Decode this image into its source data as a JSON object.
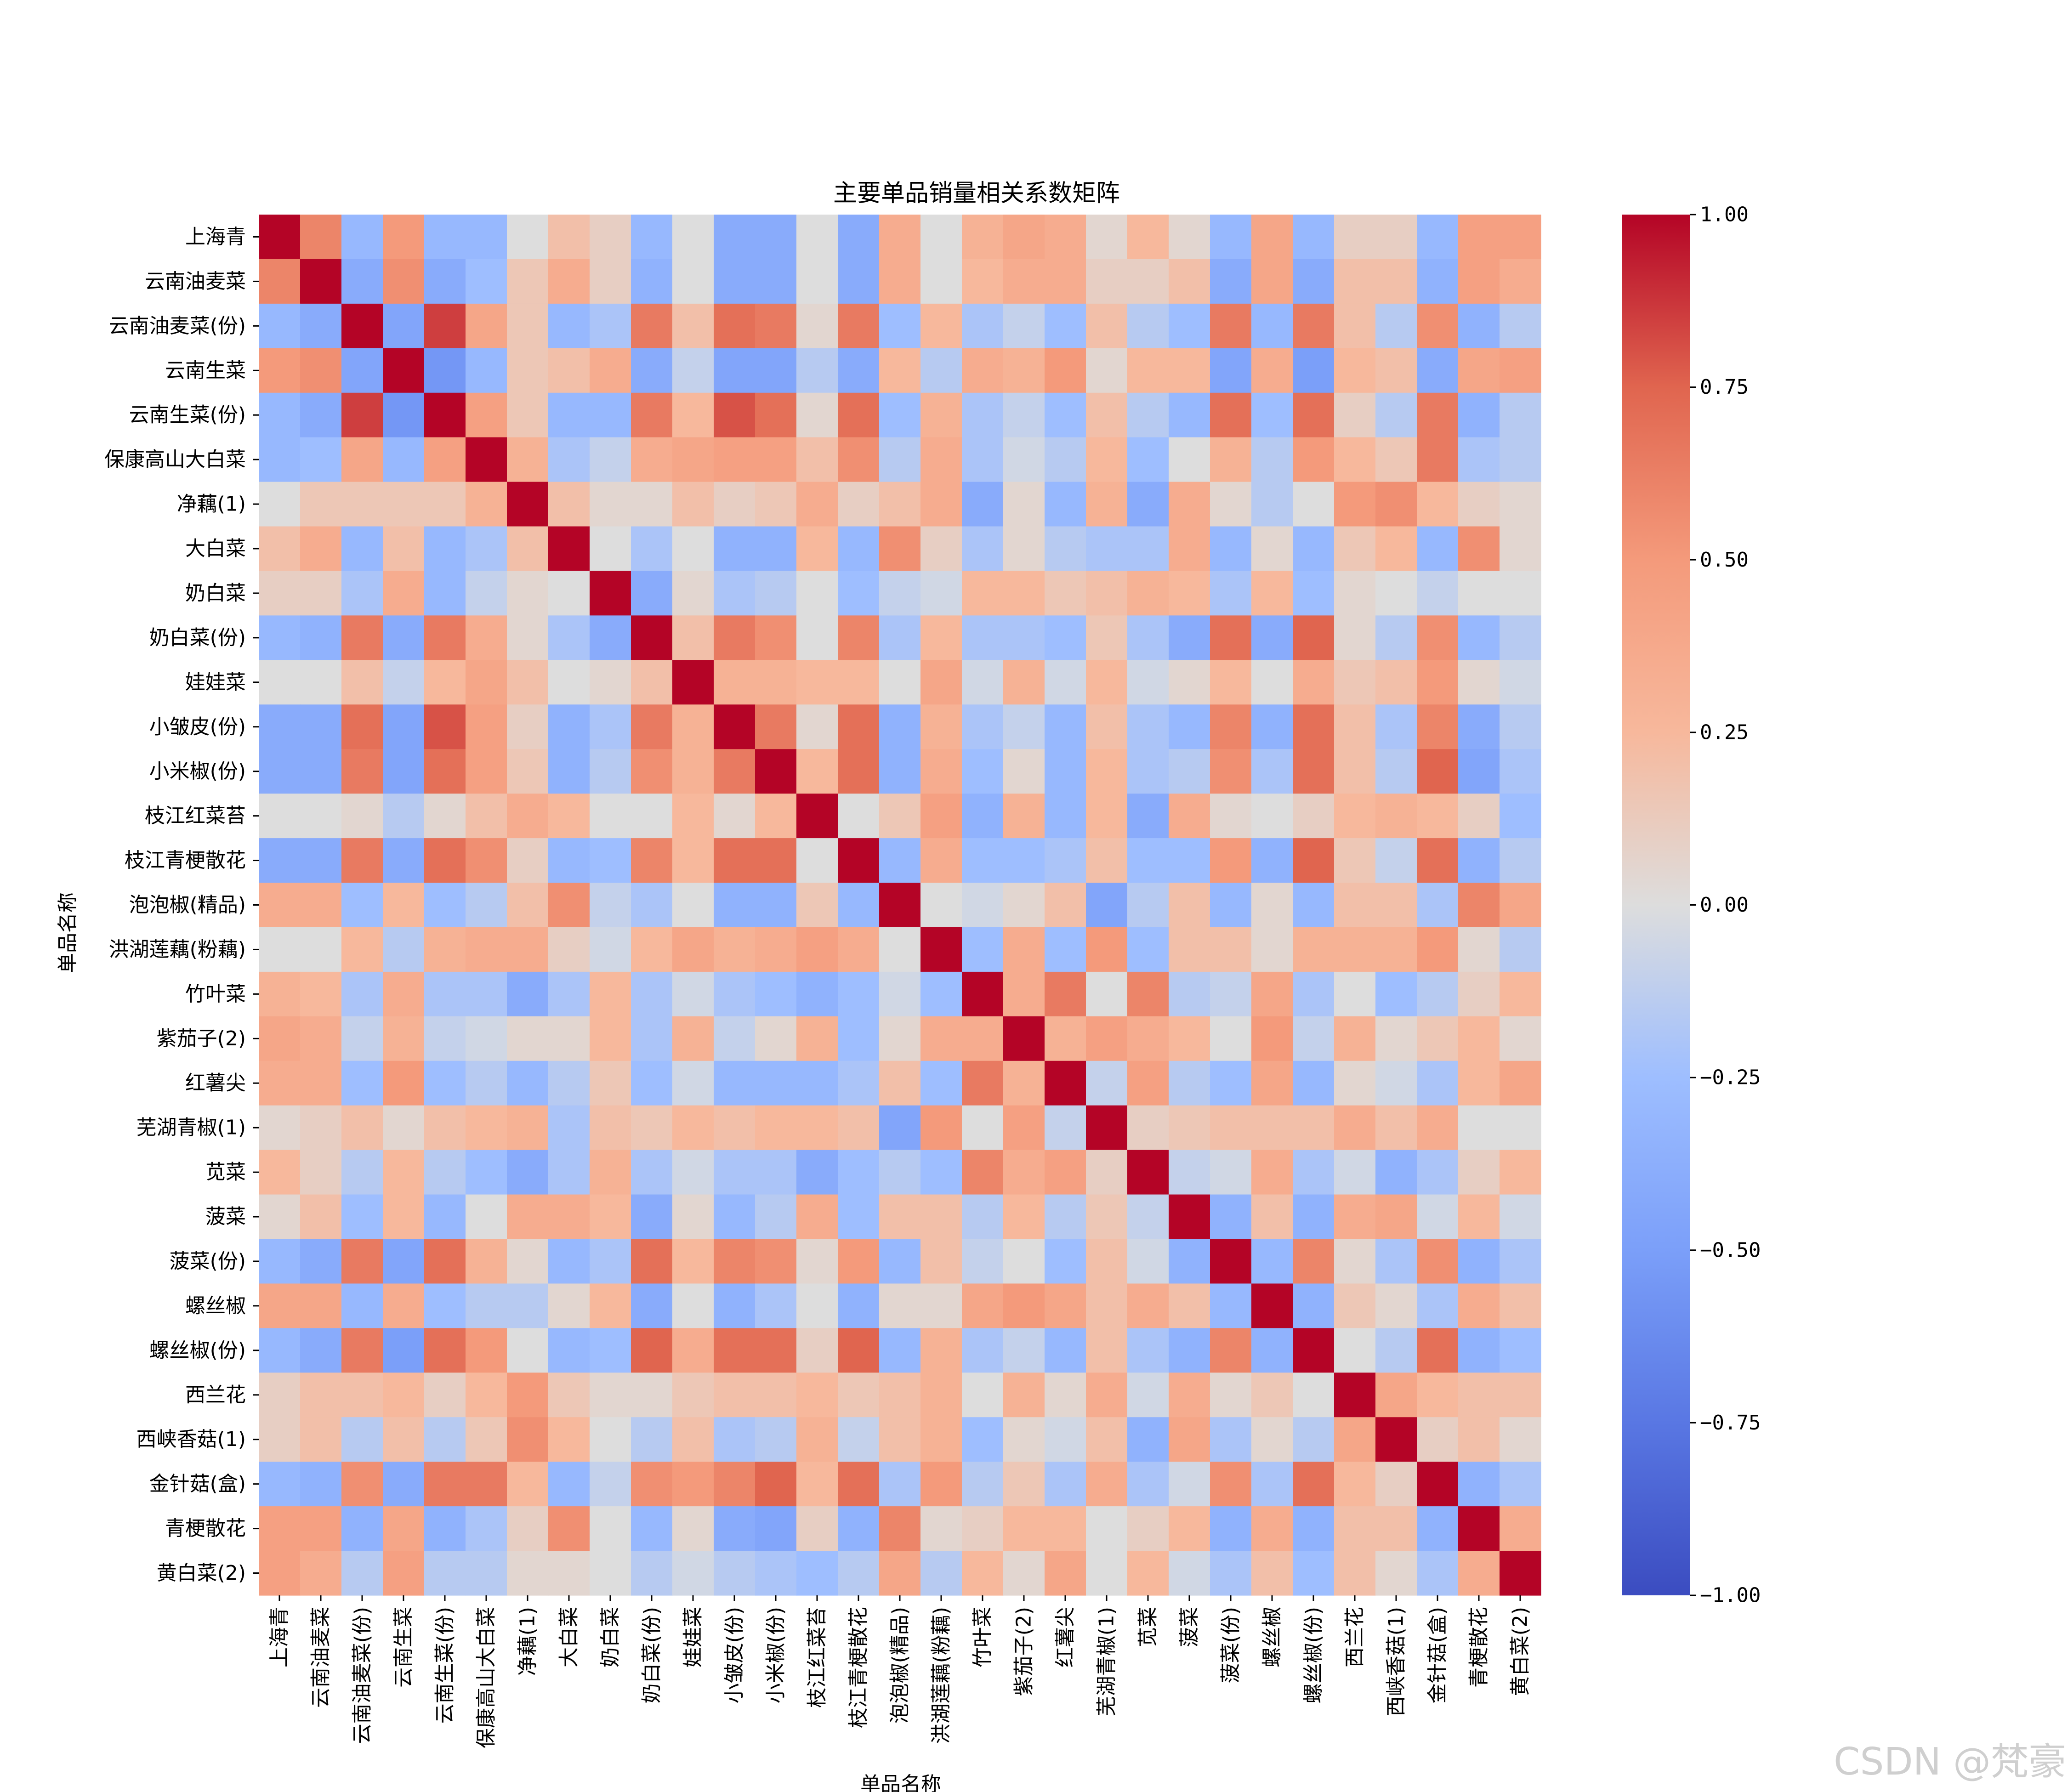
{
  "watermark": "CSDN @梵豪",
  "chart_data": {
    "type": "heatmap",
    "title": "主要单品销量相关系数矩阵",
    "xlabel": "单品名称",
    "ylabel": "单品名称",
    "colormap": "coolwarm",
    "colors": {
      "min": "#3b4cc0",
      "mid": "#dddddd",
      "max": "#b40426"
    },
    "vmin": -1.0,
    "vmax": 1.0,
    "colorbar_ticks": [
      1.0,
      0.75,
      0.5,
      0.25,
      0.0,
      -0.25,
      -0.5,
      -0.75,
      -1.0
    ],
    "colorbar_tick_labels": [
      "1.00",
      "0.75",
      "0.50",
      "0.25",
      "0.00",
      "−0.25",
      "−0.50",
      "−0.75",
      "−1.00"
    ],
    "labels": [
      "上海青",
      "云南油麦菜",
      "云南油麦菜(份)",
      "云南生菜",
      "云南生菜(份)",
      "保康高山大白菜",
      "净藕(1)",
      "大白菜",
      "奶白菜",
      "奶白菜(份)",
      "娃娃菜",
      "小皱皮(份)",
      "小米椒(份)",
      "枝江红菜苔",
      "枝江青梗散花",
      "泡泡椒(精品)",
      "洪湖莲藕(粉藕)",
      "竹叶菜",
      "紫茄子(2)",
      "红薯尖",
      "芜湖青椒(1)",
      "苋菜",
      "菠菜",
      "菠菜(份)",
      "螺丝椒",
      "螺丝椒(份)",
      "西兰花",
      "西峡香菇(1)",
      "金针菇(盒)",
      "青梗散花",
      "黄白菜(2)"
    ],
    "matrix": [
      [
        1.0,
        0.6,
        -0.3,
        0.5,
        -0.3,
        -0.3,
        0.0,
        0.2,
        0.1,
        -0.3,
        0.0,
        -0.4,
        -0.4,
        0.0,
        -0.4,
        0.35,
        0.0,
        0.3,
        0.4,
        0.35,
        0.05,
        0.25,
        0.05,
        -0.3,
        0.4,
        -0.3,
        0.1,
        0.1,
        -0.3,
        0.45,
        0.45
      ],
      [
        0.6,
        1.0,
        -0.4,
        0.55,
        -0.4,
        -0.25,
        0.15,
        0.35,
        0.1,
        -0.35,
        0.0,
        -0.4,
        -0.4,
        0.0,
        -0.4,
        0.35,
        0.0,
        0.25,
        0.35,
        0.35,
        0.1,
        0.1,
        0.2,
        -0.4,
        0.4,
        -0.4,
        0.2,
        0.2,
        -0.35,
        0.45,
        0.35
      ],
      [
        -0.3,
        -0.4,
        1.0,
        -0.45,
        0.85,
        0.4,
        0.15,
        -0.3,
        -0.2,
        0.65,
        0.2,
        0.7,
        0.65,
        0.05,
        0.65,
        -0.25,
        0.25,
        -0.2,
        -0.1,
        -0.25,
        0.2,
        -0.15,
        -0.25,
        0.65,
        -0.3,
        0.65,
        0.2,
        -0.15,
        0.55,
        -0.35,
        -0.15
      ],
      [
        0.5,
        0.55,
        -0.45,
        1.0,
        -0.55,
        -0.3,
        0.15,
        0.2,
        0.35,
        -0.4,
        -0.1,
        -0.45,
        -0.45,
        -0.15,
        -0.4,
        0.25,
        -0.15,
        0.35,
        0.3,
        0.5,
        0.05,
        0.25,
        0.25,
        -0.45,
        0.35,
        -0.5,
        0.25,
        0.2,
        -0.4,
        0.4,
        0.45
      ],
      [
        -0.3,
        -0.4,
        0.85,
        -0.55,
        1.0,
        0.45,
        0.15,
        -0.3,
        -0.3,
        0.65,
        0.25,
        0.8,
        0.7,
        0.05,
        0.7,
        -0.25,
        0.3,
        -0.2,
        -0.1,
        -0.25,
        0.2,
        -0.15,
        -0.3,
        0.7,
        -0.25,
        0.7,
        0.1,
        -0.15,
        0.65,
        -0.35,
        -0.15
      ],
      [
        -0.3,
        -0.25,
        0.4,
        -0.3,
        0.45,
        1.0,
        0.3,
        -0.2,
        -0.1,
        0.35,
        0.4,
        0.45,
        0.45,
        0.2,
        0.55,
        -0.15,
        0.35,
        -0.2,
        -0.05,
        -0.15,
        0.25,
        -0.25,
        0.0,
        0.3,
        -0.15,
        0.5,
        0.25,
        0.15,
        0.65,
        -0.2,
        -0.15
      ],
      [
        0.0,
        0.15,
        0.15,
        0.15,
        0.15,
        0.3,
        1.0,
        0.2,
        0.05,
        0.05,
        0.2,
        0.1,
        0.15,
        0.35,
        0.1,
        0.2,
        0.35,
        -0.4,
        0.05,
        -0.3,
        0.3,
        -0.4,
        0.35,
        0.05,
        -0.15,
        0.0,
        0.5,
        0.55,
        0.25,
        0.1,
        0.05
      ],
      [
        0.2,
        0.35,
        -0.3,
        0.2,
        -0.3,
        -0.2,
        0.2,
        1.0,
        0.0,
        -0.2,
        0.0,
        -0.35,
        -0.35,
        0.25,
        -0.3,
        0.55,
        0.1,
        -0.2,
        0.05,
        -0.15,
        -0.2,
        -0.2,
        0.35,
        -0.3,
        0.05,
        -0.3,
        0.15,
        0.25,
        -0.3,
        0.55,
        0.05
      ],
      [
        0.1,
        0.1,
        -0.2,
        0.35,
        -0.3,
        -0.1,
        0.05,
        0.0,
        1.0,
        -0.4,
        0.05,
        -0.2,
        -0.15,
        0.0,
        -0.25,
        -0.1,
        -0.05,
        0.25,
        0.25,
        0.15,
        0.2,
        0.3,
        0.25,
        -0.2,
        0.25,
        -0.25,
        0.05,
        0.0,
        -0.1,
        0.0,
        0.0
      ],
      [
        -0.3,
        -0.35,
        0.65,
        -0.4,
        0.65,
        0.35,
        0.05,
        -0.2,
        -0.4,
        1.0,
        0.2,
        0.65,
        0.55,
        0.0,
        0.6,
        -0.2,
        0.25,
        -0.2,
        -0.2,
        -0.25,
        0.15,
        -0.2,
        -0.4,
        0.7,
        -0.4,
        0.75,
        0.05,
        -0.15,
        0.55,
        -0.3,
        -0.15
      ],
      [
        0.0,
        0.0,
        0.2,
        -0.1,
        0.25,
        0.4,
        0.2,
        0.0,
        0.05,
        0.2,
        1.0,
        0.3,
        0.3,
        0.25,
        0.25,
        0.0,
        0.4,
        -0.05,
        0.3,
        -0.05,
        0.25,
        -0.05,
        0.05,
        0.25,
        0.0,
        0.35,
        0.15,
        0.2,
        0.5,
        0.05,
        -0.05
      ],
      [
        -0.4,
        -0.4,
        0.7,
        -0.45,
        0.8,
        0.45,
        0.1,
        -0.35,
        -0.2,
        0.65,
        0.3,
        1.0,
        0.65,
        0.05,
        0.7,
        -0.35,
        0.3,
        -0.2,
        -0.1,
        -0.3,
        0.2,
        -0.2,
        -0.3,
        0.6,
        -0.35,
        0.7,
        0.2,
        -0.2,
        0.6,
        -0.4,
        -0.15
      ],
      [
        -0.4,
        -0.4,
        0.65,
        -0.45,
        0.7,
        0.45,
        0.15,
        -0.35,
        -0.15,
        0.55,
        0.3,
        0.65,
        1.0,
        0.25,
        0.7,
        -0.35,
        0.35,
        -0.25,
        0.05,
        -0.3,
        0.25,
        -0.2,
        -0.15,
        0.55,
        -0.2,
        0.7,
        0.2,
        -0.15,
        0.75,
        -0.45,
        -0.2
      ],
      [
        0.0,
        0.0,
        0.05,
        -0.15,
        0.05,
        0.2,
        0.35,
        0.25,
        0.0,
        0.0,
        0.25,
        0.05,
        0.25,
        1.0,
        0.0,
        0.15,
        0.45,
        -0.35,
        0.3,
        -0.3,
        0.25,
        -0.4,
        0.35,
        0.05,
        0.0,
        0.1,
        0.25,
        0.3,
        0.25,
        0.1,
        -0.25
      ],
      [
        -0.4,
        -0.4,
        0.65,
        -0.4,
        0.7,
        0.55,
        0.1,
        -0.3,
        -0.25,
        0.6,
        0.25,
        0.7,
        0.7,
        0.0,
        1.0,
        -0.3,
        0.35,
        -0.25,
        -0.25,
        -0.2,
        0.2,
        -0.25,
        -0.25,
        0.5,
        -0.35,
        0.75,
        0.15,
        -0.1,
        0.7,
        -0.35,
        -0.15
      ],
      [
        0.35,
        0.35,
        -0.25,
        0.25,
        -0.25,
        -0.15,
        0.2,
        0.55,
        -0.1,
        -0.2,
        0.0,
        -0.35,
        -0.35,
        0.15,
        -0.3,
        1.0,
        0.0,
        -0.05,
        0.05,
        0.2,
        -0.45,
        -0.15,
        0.2,
        -0.3,
        0.05,
        -0.3,
        0.2,
        0.2,
        -0.2,
        0.6,
        0.4
      ],
      [
        0.0,
        0.0,
        0.25,
        -0.15,
        0.3,
        0.35,
        0.35,
        0.1,
        -0.05,
        0.25,
        0.4,
        0.3,
        0.35,
        0.45,
        0.35,
        0.0,
        1.0,
        -0.25,
        0.35,
        -0.25,
        0.5,
        -0.25,
        0.2,
        0.2,
        0.05,
        0.3,
        0.3,
        0.3,
        0.5,
        0.05,
        -0.15
      ],
      [
        0.3,
        0.25,
        -0.2,
        0.35,
        -0.2,
        -0.2,
        -0.4,
        -0.2,
        0.25,
        -0.2,
        -0.05,
        -0.2,
        -0.25,
        -0.35,
        -0.25,
        -0.05,
        -0.25,
        1.0,
        0.35,
        0.65,
        0.0,
        0.6,
        -0.15,
        -0.1,
        0.4,
        -0.2,
        0.0,
        -0.25,
        -0.15,
        0.1,
        0.25
      ],
      [
        0.4,
        0.35,
        -0.1,
        0.3,
        -0.1,
        -0.05,
        0.05,
        0.05,
        0.25,
        -0.2,
        0.3,
        -0.1,
        0.05,
        0.3,
        -0.25,
        0.05,
        0.35,
        0.35,
        1.0,
        0.3,
        0.45,
        0.35,
        0.25,
        0.0,
        0.5,
        -0.1,
        0.3,
        0.05,
        0.15,
        0.25,
        0.05
      ],
      [
        0.35,
        0.35,
        -0.25,
        0.5,
        -0.25,
        -0.15,
        -0.3,
        -0.15,
        0.15,
        -0.25,
        -0.05,
        -0.3,
        -0.3,
        -0.3,
        -0.2,
        0.2,
        -0.25,
        0.65,
        0.3,
        1.0,
        -0.1,
        0.45,
        -0.15,
        -0.25,
        0.4,
        -0.3,
        0.05,
        -0.05,
        -0.2,
        0.25,
        0.4
      ],
      [
        0.05,
        0.1,
        0.2,
        0.05,
        0.2,
        0.25,
        0.3,
        -0.2,
        0.2,
        0.15,
        0.25,
        0.2,
        0.25,
        0.25,
        0.2,
        -0.45,
        0.5,
        0.0,
        0.45,
        -0.1,
        1.0,
        0.1,
        0.15,
        0.2,
        0.2,
        0.2,
        0.35,
        0.2,
        0.35,
        0.0,
        0.0
      ],
      [
        0.25,
        0.1,
        -0.15,
        0.25,
        -0.15,
        -0.25,
        -0.4,
        -0.2,
        0.3,
        -0.2,
        -0.05,
        -0.2,
        -0.2,
        -0.4,
        -0.25,
        -0.15,
        -0.25,
        0.6,
        0.35,
        0.45,
        0.1,
        1.0,
        -0.1,
        -0.05,
        0.35,
        -0.2,
        -0.05,
        -0.35,
        -0.2,
        0.1,
        0.25
      ],
      [
        0.05,
        0.2,
        -0.25,
        0.25,
        -0.3,
        0.0,
        0.35,
        0.35,
        0.25,
        -0.4,
        0.05,
        -0.3,
        -0.15,
        0.35,
        -0.25,
        0.2,
        0.2,
        -0.15,
        0.25,
        -0.15,
        0.15,
        -0.1,
        1.0,
        -0.35,
        0.2,
        -0.35,
        0.35,
        0.4,
        -0.05,
        0.25,
        -0.05
      ],
      [
        -0.3,
        -0.4,
        0.65,
        -0.45,
        0.7,
        0.3,
        0.05,
        -0.3,
        -0.2,
        0.7,
        0.25,
        0.6,
        0.55,
        0.05,
        0.5,
        -0.3,
        0.2,
        -0.1,
        0.0,
        -0.25,
        0.2,
        -0.05,
        -0.35,
        1.0,
        -0.3,
        0.6,
        0.05,
        -0.2,
        0.55,
        -0.35,
        -0.2
      ],
      [
        0.4,
        0.4,
        -0.3,
        0.35,
        -0.25,
        -0.15,
        -0.15,
        0.05,
        0.25,
        -0.4,
        0.0,
        -0.35,
        -0.2,
        0.0,
        -0.35,
        0.05,
        0.05,
        0.4,
        0.5,
        0.4,
        0.2,
        0.35,
        0.2,
        -0.3,
        1.0,
        -0.35,
        0.15,
        0.05,
        -0.2,
        0.35,
        0.2
      ],
      [
        -0.3,
        -0.4,
        0.65,
        -0.5,
        0.7,
        0.5,
        0.0,
        -0.3,
        -0.25,
        0.75,
        0.35,
        0.7,
        0.7,
        0.1,
        0.75,
        -0.3,
        0.3,
        -0.2,
        -0.1,
        -0.3,
        0.2,
        -0.2,
        -0.35,
        0.6,
        -0.35,
        1.0,
        0.0,
        -0.15,
        0.7,
        -0.35,
        -0.25
      ],
      [
        0.1,
        0.2,
        0.2,
        0.25,
        0.1,
        0.25,
        0.5,
        0.15,
        0.05,
        0.05,
        0.15,
        0.2,
        0.2,
        0.25,
        0.15,
        0.2,
        0.3,
        0.0,
        0.3,
        0.05,
        0.35,
        -0.05,
        0.35,
        0.05,
        0.15,
        0.0,
        1.0,
        0.4,
        0.25,
        0.2,
        0.2
      ],
      [
        0.1,
        0.2,
        -0.15,
        0.2,
        -0.15,
        0.15,
        0.55,
        0.25,
        0.0,
        -0.15,
        0.2,
        -0.2,
        -0.15,
        0.3,
        -0.1,
        0.2,
        0.3,
        -0.25,
        0.05,
        -0.05,
        0.2,
        -0.35,
        0.4,
        -0.2,
        0.05,
        -0.15,
        0.4,
        1.0,
        0.1,
        0.2,
        0.05
      ],
      [
        -0.3,
        -0.35,
        0.55,
        -0.4,
        0.65,
        0.65,
        0.25,
        -0.3,
        -0.1,
        0.55,
        0.5,
        0.6,
        0.75,
        0.25,
        0.7,
        -0.2,
        0.5,
        -0.15,
        0.15,
        -0.2,
        0.35,
        -0.2,
        -0.05,
        0.55,
        -0.2,
        0.7,
        0.25,
        0.1,
        1.0,
        -0.35,
        -0.2
      ],
      [
        0.45,
        0.45,
        -0.35,
        0.4,
        -0.35,
        -0.2,
        0.1,
        0.55,
        0.0,
        -0.3,
        0.05,
        -0.4,
        -0.45,
        0.1,
        -0.35,
        0.6,
        0.05,
        0.1,
        0.25,
        0.25,
        0.0,
        0.1,
        0.25,
        -0.35,
        0.35,
        -0.35,
        0.2,
        0.2,
        -0.35,
        1.0,
        0.35
      ],
      [
        0.45,
        0.35,
        -0.15,
        0.45,
        -0.15,
        -0.15,
        0.05,
        0.05,
        0.0,
        -0.15,
        -0.05,
        -0.15,
        -0.2,
        -0.25,
        -0.15,
        0.4,
        -0.15,
        0.25,
        0.05,
        0.4,
        0.0,
        0.25,
        -0.05,
        -0.2,
        0.2,
        -0.25,
        0.2,
        0.05,
        -0.2,
        0.35,
        1.0
      ]
    ]
  }
}
